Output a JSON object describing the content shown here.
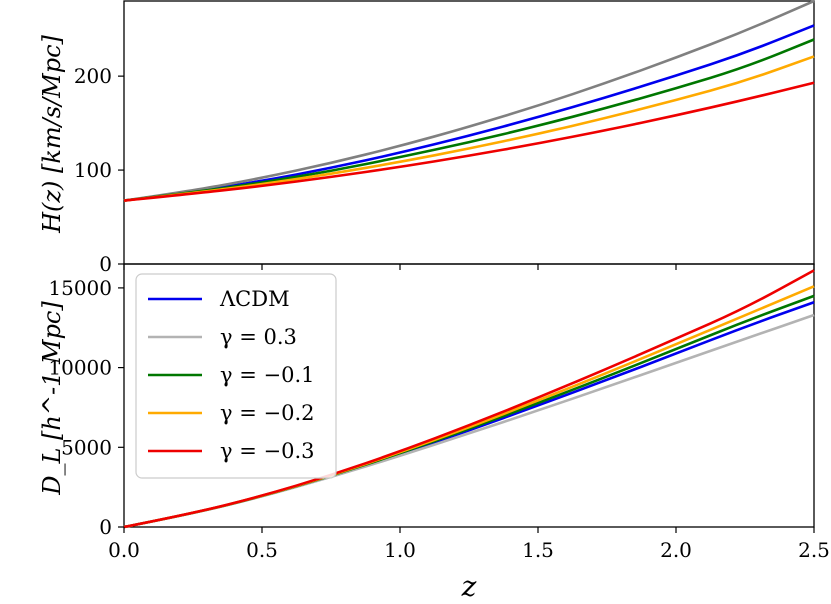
{
  "chart_data": [
    {
      "type": "line",
      "panel": "top",
      "title": "",
      "xlabel": "",
      "ylabel": "H(z) [km/s/Mpc]",
      "xlim": [
        0,
        2.5
      ],
      "ylim": [
        0,
        280
      ],
      "xticks": [
        0.0,
        0.5,
        1.0,
        1.5,
        2.0,
        2.5
      ],
      "yticks": [
        0,
        100,
        200
      ],
      "ytick_labels": [
        "0",
        "100",
        "200"
      ],
      "grid": false,
      "x": [
        0.0,
        0.25,
        0.5,
        0.75,
        1.0,
        1.25,
        1.5,
        1.75,
        2.0,
        2.25,
        2.5
      ],
      "series": [
        {
          "name": "ΛCDM",
          "color": "#0000ee",
          "values": [
            67.5,
            76.9,
            88.3,
            102.3,
            118.4,
            136.5,
            156.3,
            177.7,
            200.5,
            224.6,
            254.0
          ]
        },
        {
          "name": "γ = 0.3",
          "color": "#808080",
          "values": [
            67.5,
            78.2,
            91.6,
            107.4,
            125.6,
            146.0,
            168.5,
            193.1,
            219.6,
            248.0,
            280.0
          ]
        },
        {
          "name": "γ = −0.1",
          "color": "#007700",
          "values": [
            67.5,
            76.3,
            86.6,
            99.0,
            113.7,
            129.5,
            147.1,
            166.3,
            187.0,
            209.4,
            239.0
          ]
        },
        {
          "name": "γ = −0.2",
          "color": "#ffaa00",
          "values": [
            67.5,
            75.6,
            84.9,
            96.0,
            108.6,
            122.8,
            138.5,
            155.7,
            174.5,
            194.7,
            221.0
          ]
        },
        {
          "name": "γ = −0.3",
          "color": "#ee0000",
          "values": [
            67.5,
            74.8,
            83.1,
            92.6,
            103.3,
            115.2,
            128.3,
            142.6,
            158.2,
            174.9,
            193.0
          ]
        }
      ]
    },
    {
      "type": "line",
      "panel": "bottom",
      "title": "",
      "xlabel": "z",
      "ylabel": "D_L [h^-1 Mpc]",
      "xlim": [
        0,
        2.5
      ],
      "ylim": [
        0,
        16500
      ],
      "xticks": [
        0.0,
        0.5,
        1.0,
        1.5,
        2.0,
        2.5
      ],
      "xtick_labels": [
        "0.0",
        "0.5",
        "1.0",
        "1.5",
        "2.0",
        "2.5"
      ],
      "yticks": [
        0,
        5000,
        10000,
        15000
      ],
      "ytick_labels": [
        "0",
        "5000",
        "10000",
        "15000"
      ],
      "grid": false,
      "legend_position": "upper-left",
      "x": [
        0.0,
        0.25,
        0.5,
        0.75,
        1.0,
        1.25,
        1.5,
        1.75,
        2.0,
        2.25,
        2.5
      ],
      "series": [
        {
          "name": "ΛCDM",
          "color": "#0000ee",
          "values": [
            0,
            850,
            1920,
            3180,
            4570,
            6060,
            7620,
            9230,
            10880,
            12560,
            14100
          ]
        },
        {
          "name": "γ = 0.3",
          "color": "#b3b3b3",
          "values": [
            0,
            845,
            1900,
            3130,
            4460,
            5870,
            7310,
            8790,
            10300,
            11800,
            13300
          ]
        },
        {
          "name": "γ = −0.1",
          "color": "#007700",
          "values": [
            0,
            852,
            1930,
            3200,
            4620,
            6150,
            7770,
            9440,
            11160,
            12900,
            14500
          ]
        },
        {
          "name": "γ = −0.2",
          "color": "#ffaa00",
          "values": [
            0,
            855,
            1940,
            3220,
            4680,
            6250,
            7930,
            9670,
            11460,
            13280,
            15100
          ]
        },
        {
          "name": "γ = −0.3",
          "color": "#ee0000",
          "values": [
            0,
            858,
            1950,
            3250,
            4740,
            6370,
            8110,
            9930,
            11810,
            13730,
            16100
          ]
        }
      ]
    }
  ]
}
